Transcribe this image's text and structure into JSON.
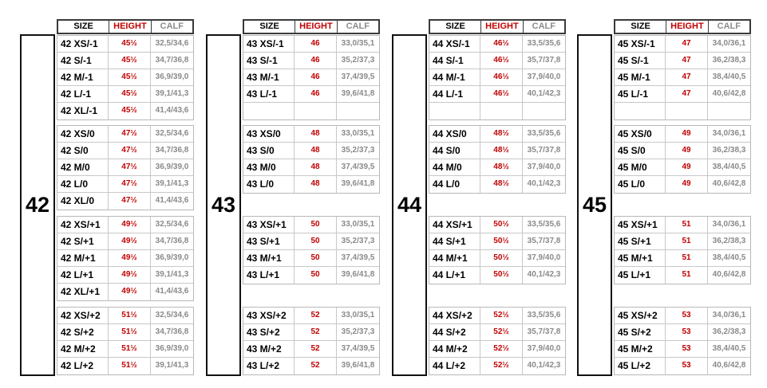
{
  "headers": {
    "size": "SIZE",
    "height": "HEIGHT",
    "calf": "CALF"
  },
  "colors": {
    "height": "#c00000",
    "calf": "#8a8a8a",
    "size": "#000000"
  },
  "blocks": [
    {
      "label": "42",
      "groups": [
        {
          "empty_row": false,
          "rows": [
            [
              "42 XS/-1",
              "45½",
              "32,5/34,6"
            ],
            [
              "42 S/-1",
              "45½",
              "34,7/36,8"
            ],
            [
              "42 M/-1",
              "45½",
              "36,9/39,0"
            ],
            [
              "42 L/-1",
              "45½",
              "39,1/41,3"
            ],
            [
              "42 XL/-1",
              "45½",
              "41,4/43,6"
            ]
          ]
        },
        {
          "empty_row": false,
          "rows": [
            [
              "42 XS/0",
              "47½",
              "32,5/34,6"
            ],
            [
              "42 S/0",
              "47½",
              "34,7/36,8"
            ],
            [
              "42 M/0",
              "47½",
              "36,9/39,0"
            ],
            [
              "42 L/0",
              "47½",
              "39,1/41,3"
            ],
            [
              "42 XL/0",
              "47½",
              "41,4/43,6"
            ]
          ]
        },
        {
          "empty_row": false,
          "rows": [
            [
              "42 XS/+1",
              "49½",
              "32,5/34,6"
            ],
            [
              "42 S/+1",
              "49½",
              "34,7/36,8"
            ],
            [
              "42 M/+1",
              "49½",
              "36,9/39,0"
            ],
            [
              "42 L/+1",
              "49½",
              "39,1/41,3"
            ],
            [
              "42 XL/+1",
              "49½",
              "41,4/43,6"
            ]
          ]
        },
        {
          "empty_row": false,
          "rows": [
            [
              "42 XS/+2",
              "51½",
              "32,5/34,6"
            ],
            [
              "42 S/+2",
              "51½",
              "34,7/36,8"
            ],
            [
              "42 M/+2",
              "51½",
              "36,9/39,0"
            ],
            [
              "42 L/+2",
              "51½",
              "39,1/41,3"
            ]
          ]
        }
      ]
    },
    {
      "label": "43",
      "groups": [
        {
          "empty_row": true,
          "rows": [
            [
              "43 XS/-1",
              "46",
              "33,0/35,1"
            ],
            [
              "43 S/-1",
              "46",
              "35,2/37,3"
            ],
            [
              "43 M/-1",
              "46",
              "37,4/39,5"
            ],
            [
              "43 L/-1",
              "46",
              "39,6/41,8"
            ]
          ]
        },
        {
          "empty_row": false,
          "rows": [
            [
              "43 XS/0",
              "48",
              "33,0/35,1"
            ],
            [
              "43 S/0",
              "48",
              "35,2/37,3"
            ],
            [
              "43 M/0",
              "48",
              "37,4/39,5"
            ],
            [
              "43 L/0",
              "48",
              "39,6/41,8"
            ]
          ]
        },
        {
          "empty_row": false,
          "rows": [
            [
              "43 XS/+1",
              "50",
              "33,0/35,1"
            ],
            [
              "43 S/+1",
              "50",
              "35,2/37,3"
            ],
            [
              "43 M/+1",
              "50",
              "37,4/39,5"
            ],
            [
              "43 L/+1",
              "50",
              "39,6/41,8"
            ]
          ]
        },
        {
          "empty_row": false,
          "rows": [
            [
              "43 XS/+2",
              "52",
              "33,0/35,1"
            ],
            [
              "43 S/+2",
              "52",
              "35,2/37,3"
            ],
            [
              "43 M/+2",
              "52",
              "37,4/39,5"
            ],
            [
              "43 L/+2",
              "52",
              "39,6/41,8"
            ]
          ]
        }
      ]
    },
    {
      "label": "44",
      "groups": [
        {
          "empty_row": true,
          "rows": [
            [
              "44 XS/-1",
              "46½",
              "33,5/35,6"
            ],
            [
              "44 S/-1",
              "46½",
              "35,7/37,8"
            ],
            [
              "44 M/-1",
              "46½",
              "37,9/40,0"
            ],
            [
              "44 L/-1",
              "46½",
              "40,1/42,3"
            ]
          ]
        },
        {
          "empty_row": false,
          "rows": [
            [
              "44 XS/0",
              "48½",
              "33,5/35,6"
            ],
            [
              "44 S/0",
              "48½",
              "35,7/37,8"
            ],
            [
              "44 M/0",
              "48½",
              "37,9/40,0"
            ],
            [
              "44 L/0",
              "48½",
              "40,1/42,3"
            ]
          ]
        },
        {
          "empty_row": false,
          "rows": [
            [
              "44 XS/+1",
              "50½",
              "33,5/35,6"
            ],
            [
              "44 S/+1",
              "50½",
              "35,7/37,8"
            ],
            [
              "44 M/+1",
              "50½",
              "37,9/40,0"
            ],
            [
              "44 L/+1",
              "50½",
              "40,1/42,3"
            ]
          ]
        },
        {
          "empty_row": false,
          "rows": [
            [
              "44 XS/+2",
              "52½",
              "33,5/35,6"
            ],
            [
              "44 S/+2",
              "52½",
              "35,7/37,8"
            ],
            [
              "44 M/+2",
              "52½",
              "37,9/40,0"
            ],
            [
              "44 L/+2",
              "52½",
              "40,1/42,3"
            ]
          ]
        }
      ]
    },
    {
      "label": "45",
      "groups": [
        {
          "empty_row": true,
          "rows": [
            [
              "45 XS/-1",
              "47",
              "34,0/36,1"
            ],
            [
              "45 S/-1",
              "47",
              "36,2/38,3"
            ],
            [
              "45 M/-1",
              "47",
              "38,4/40,5"
            ],
            [
              "45 L/-1",
              "47",
              "40,6/42,8"
            ]
          ]
        },
        {
          "empty_row": false,
          "rows": [
            [
              "45 XS/0",
              "49",
              "34,0/36,1"
            ],
            [
              "45 S/0",
              "49",
              "36,2/38,3"
            ],
            [
              "45 M/0",
              "49",
              "38,4/40,5"
            ],
            [
              "45 L/0",
              "49",
              "40,6/42,8"
            ]
          ]
        },
        {
          "empty_row": false,
          "rows": [
            [
              "45 XS/+1",
              "51",
              "34,0/36,1"
            ],
            [
              "45 S/+1",
              "51",
              "36,2/38,3"
            ],
            [
              "45 M/+1",
              "51",
              "38,4/40,5"
            ],
            [
              "45 L/+1",
              "51",
              "40,6/42,8"
            ]
          ]
        },
        {
          "empty_row": false,
          "rows": [
            [
              "45 XS/+2",
              "53",
              "34,0/36,1"
            ],
            [
              "45 S/+2",
              "53",
              "36,2/38,3"
            ],
            [
              "45 M/+2",
              "53",
              "38,4/40,5"
            ],
            [
              "45 L/+2",
              "53",
              "40,6/42,8"
            ]
          ]
        }
      ]
    }
  ]
}
